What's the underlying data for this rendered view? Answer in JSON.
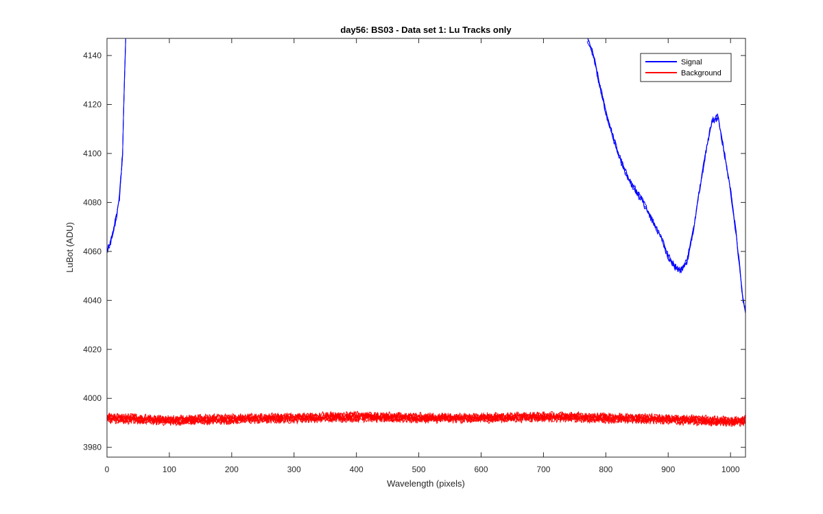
{
  "chart_data": {
    "type": "line",
    "title": "day56: BS03 - Data set 1: Lu Tracks only",
    "xlabel": "Wavelength (pixels)",
    "ylabel": "LuBot (ADU)",
    "xlim": [
      0,
      1024
    ],
    "ylim": [
      3976,
      4147
    ],
    "x_ticks": [
      0,
      100,
      200,
      300,
      400,
      500,
      600,
      700,
      800,
      900,
      1000
    ],
    "y_ticks": [
      3980,
      4000,
      4020,
      4040,
      4060,
      4080,
      4100,
      4120,
      4140
    ],
    "grid": false,
    "legend_position": "top-right",
    "series": [
      {
        "name": "Signal",
        "color": "#0000ff",
        "x": [
          0,
          5,
          10,
          15,
          20,
          25,
          28,
          30,
          770,
          780,
          790,
          800,
          810,
          820,
          830,
          840,
          850,
          860,
          870,
          880,
          890,
          900,
          910,
          920,
          930,
          940,
          950,
          960,
          970,
          980,
          990,
          1000,
          1010,
          1020,
          1024
        ],
        "y": [
          4060,
          4063,
          4068,
          4074,
          4082,
          4100,
          4130,
          4147,
          4147,
          4140,
          4128,
          4117,
          4108,
          4100,
          4093,
          4088,
          4084,
          4080,
          4075,
          4070,
          4065,
          4058,
          4054,
          4052,
          4056,
          4068,
          4085,
          4100,
          4113,
          4115,
          4100,
          4085,
          4065,
          4040,
          4036
        ]
      },
      {
        "name": "Background",
        "color": "#ff0000",
        "x": [
          0,
          100,
          200,
          300,
          400,
          500,
          600,
          700,
          800,
          900,
          1000,
          1024
        ],
        "y": [
          3992,
          3991,
          3991.5,
          3992,
          3992.5,
          3992,
          3992,
          3992.5,
          3992,
          3991.5,
          3990.5,
          3991
        ]
      }
    ]
  }
}
